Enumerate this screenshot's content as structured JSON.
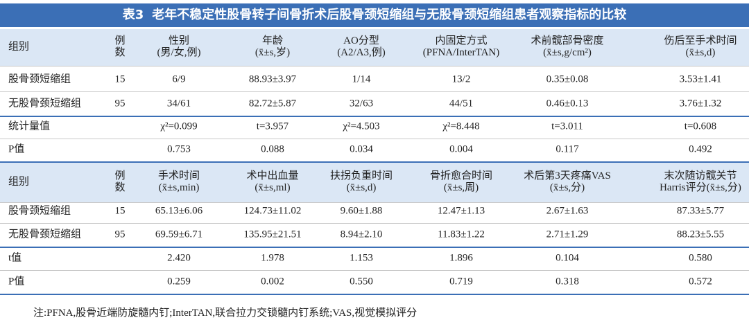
{
  "title_label": "表3",
  "title": "老年不稳定性股骨转子间骨折术后股骨颈短缩组与无股骨颈短缩组患者观察指标的比较",
  "table1": {
    "header": [
      [
        "组别"
      ],
      [
        "例",
        "数"
      ],
      [
        "性别",
        "(男/女,例)"
      ],
      [
        "年龄",
        "(x̄±s,岁)"
      ],
      [
        "AO分型",
        "(A2/A3,例)"
      ],
      [
        "内固定方式",
        "(PFNA/InterTAN)"
      ],
      [
        "术前髋部骨密度",
        "(x̄±s,g/cm²)"
      ],
      [
        "伤后至手术时间",
        "(x̄±s,d)"
      ]
    ],
    "rows": [
      [
        "股骨颈短缩组",
        "15",
        "6/9",
        "88.93±3.97",
        "1/14",
        "13/2",
        "0.35±0.08",
        "3.53±1.41"
      ],
      [
        "无股骨颈短缩组",
        "95",
        "34/61",
        "82.72±5.87",
        "32/63",
        "44/51",
        "0.46±0.13",
        "3.76±1.32"
      ],
      [
        "统计量值",
        "",
        "χ²=0.099",
        "t=3.957",
        "χ²=4.503",
        "χ²=8.448",
        "t=3.011",
        "t=0.608"
      ],
      [
        "P值",
        "",
        "0.753",
        "0.088",
        "0.034",
        "0.004",
        "0.117",
        "0.492"
      ]
    ]
  },
  "table2": {
    "header": [
      [
        "组别"
      ],
      [
        "例",
        "数"
      ],
      [
        "手术时间",
        "(x̄±s,min)"
      ],
      [
        "术中出血量",
        "(x̄±s,ml)"
      ],
      [
        "扶拐负重时间",
        "(x̄±s,d)"
      ],
      [
        "骨折愈合时间",
        "(x̄±s,周)"
      ],
      [
        "术后第3天疼痛VAS",
        "(x̄±s,分)"
      ],
      [
        "末次随访髋关节",
        "Harris评分(x̄±s,分)"
      ]
    ],
    "rows": [
      [
        "股骨颈短缩组",
        "15",
        "65.13±6.06",
        "124.73±11.02",
        "9.60±1.88",
        "12.47±1.13",
        "2.67±1.63",
        "87.33±5.77"
      ],
      [
        "无股骨颈短缩组",
        "95",
        "69.59±6.71",
        "135.95±21.51",
        "8.94±2.10",
        "11.83±1.22",
        "2.71±1.29",
        "88.23±5.55"
      ],
      [
        "t值",
        "",
        "2.420",
        "1.978",
        "1.153",
        "1.896",
        "0.104",
        "0.580"
      ],
      [
        "P值",
        "",
        "0.259",
        "0.002",
        "0.550",
        "0.719",
        "0.318",
        "0.572"
      ]
    ]
  },
  "note": "注:PFNA,股骨近端防旋髓内钉;InterTAN,联合拉力交锁髓内钉系统;VAS,视觉模拟评分"
}
